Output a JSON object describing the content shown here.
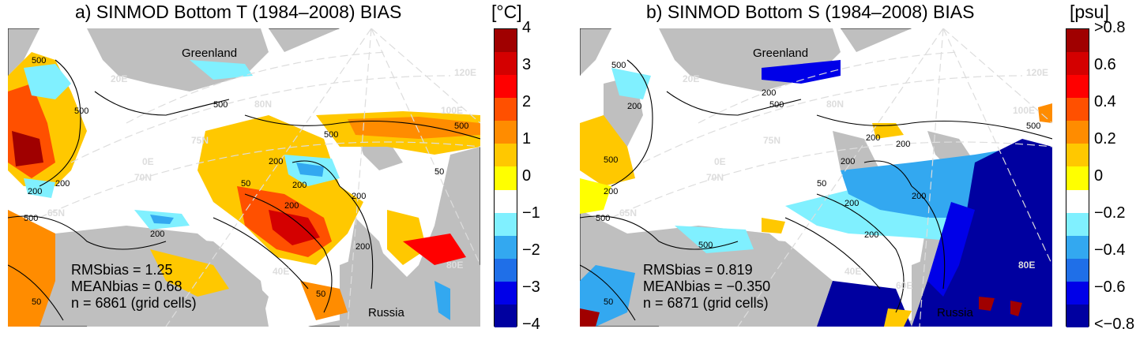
{
  "panels": [
    {
      "title": "a) SINMOD Bottom T (1984–2008) BIAS",
      "unit": "[°C]",
      "ticks": [
        "4",
        "3",
        "2",
        "1",
        "0",
        "−1",
        "−2",
        "−3",
        "−4"
      ],
      "stats": {
        "rms": "RMSbias = 1.25",
        "mean": "MEANbias = 0.68",
        "n": "n = 6861 (grid cells)"
      },
      "labels": {
        "greenland": "Greenland",
        "russia": "Russia"
      },
      "grid_labels": {
        "lat80": "80N",
        "lat75": "75N",
        "lat70": "70N",
        "lat65": "65N",
        "lon0": "0E",
        "lon20": "20E",
        "lon40": "40E",
        "lon80": "80E",
        "lon100": "100E",
        "lon120": "120E"
      },
      "contours": [
        "500",
        "200",
        "50"
      ]
    },
    {
      "title": "b) SINMOD Bottom S (1984–2008) BIAS",
      "unit": "[psu]",
      "ticks": [
        ">0.8",
        "0.6",
        "0.4",
        "0.2",
        "0",
        "−0.2",
        "−0.4",
        "−0.6",
        "<−0.8"
      ],
      "stats": {
        "rms": "RMSbias = 0.819",
        "mean": "MEANbias = −0.350",
        "n": "n = 6871 (grid cells)"
      },
      "labels": {
        "greenland": "Greenland",
        "russia": "Russia"
      },
      "grid_labels": {
        "lat80": "80N",
        "lat75": "75N",
        "lat70": "70N",
        "lat65": "65N",
        "lon0": "0E",
        "lon20": "20E",
        "lon40": "40E",
        "lon60": "60E",
        "lon80": "80E",
        "lon100": "100E",
        "lon120": "120E"
      },
      "contours": [
        "500",
        "200",
        "50"
      ]
    }
  ],
  "colorbar_colors": [
    "#0000a0",
    "#0000e8",
    "#1f6fe8",
    "#33a8f0",
    "#80f0ff",
    "#ffffff",
    "#ffff00",
    "#ffc800",
    "#ff8c00",
    "#ff5000",
    "#ff0000",
    "#d40000",
    "#a00000"
  ],
  "land_color": "#bfbfbf"
}
